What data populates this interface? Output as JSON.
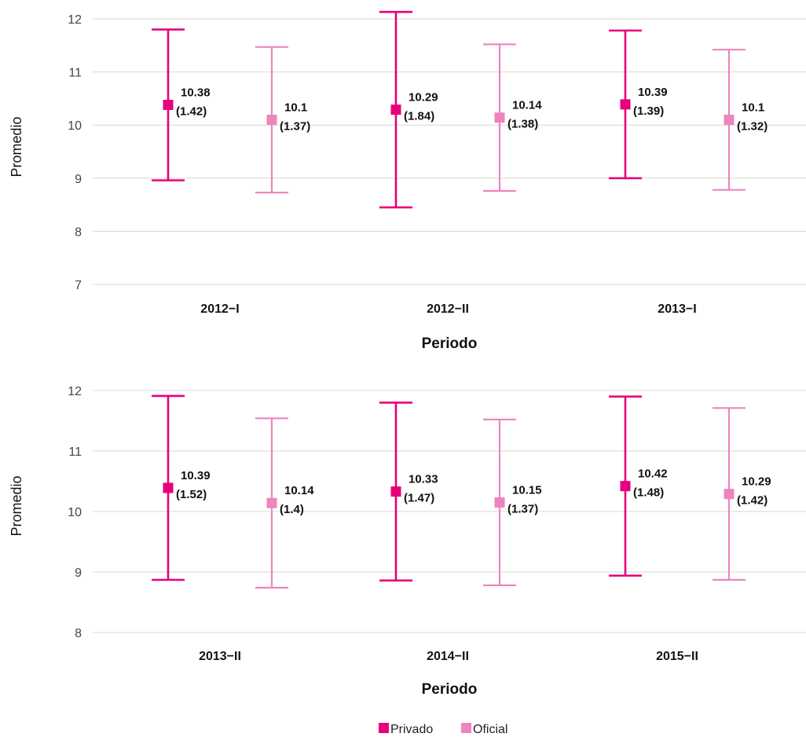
{
  "chart_data": [
    {
      "type": "errorbar",
      "xlabel": "Periodo",
      "ylabel": "Promedio",
      "ylim": [
        7,
        12.15
      ],
      "yticks": [
        "7",
        "8",
        "9",
        "10",
        "11",
        "12"
      ],
      "ytick_values": [
        7,
        8,
        9,
        10,
        11,
        12
      ],
      "categories": [
        "2012−I",
        "2012−II",
        "2013−I"
      ],
      "grid": true,
      "series": [
        {
          "name": "Privado",
          "color": "#e6007e",
          "means": [
            10.38,
            10.29,
            10.39
          ],
          "sds": [
            1.42,
            1.84,
            1.39
          ],
          "labels": [
            "10.38",
            "10.29",
            "10.39"
          ],
          "sd_labels": [
            "(1.42)",
            "(1.84)",
            "(1.39)"
          ]
        },
        {
          "name": "Oficial",
          "color": "#ec85bd",
          "means": [
            10.1,
            10.14,
            10.1
          ],
          "sds": [
            1.37,
            1.38,
            1.32
          ],
          "labels": [
            "10.1",
            "10.14",
            "10.1"
          ],
          "sd_labels": [
            "(1.37)",
            "(1.38)",
            "(1.32)"
          ]
        }
      ]
    },
    {
      "type": "errorbar",
      "xlabel": "Periodo",
      "ylabel": "Promedio",
      "ylim": [
        8,
        12.05
      ],
      "yticks": [
        "8",
        "9",
        "10",
        "11",
        "12"
      ],
      "ytick_values": [
        8,
        9,
        10,
        11,
        12
      ],
      "categories": [
        "2013−II",
        "2014−II",
        "2015−II"
      ],
      "grid": true,
      "series": [
        {
          "name": "Privado",
          "color": "#e6007e",
          "means": [
            10.39,
            10.33,
            10.42
          ],
          "sds": [
            1.52,
            1.47,
            1.48
          ],
          "labels": [
            "10.39",
            "10.33",
            "10.42"
          ],
          "sd_labels": [
            "(1.52)",
            "(1.47)",
            "(1.48)"
          ]
        },
        {
          "name": "Oficial",
          "color": "#ec85bd",
          "means": [
            10.14,
            10.15,
            10.29
          ],
          "sds": [
            1.4,
            1.37,
            1.42
          ],
          "labels": [
            "10.14",
            "10.15",
            "10.29"
          ],
          "sd_labels": [
            "(1.4)",
            "(1.37)",
            "(1.42)"
          ]
        }
      ]
    }
  ],
  "legend": {
    "placement": "bottom-center",
    "items": [
      {
        "label": "Privado",
        "color": "#e6007e"
      },
      {
        "label": "Oficial",
        "color": "#ec85bd"
      }
    ]
  },
  "colors": {
    "gridline": "#d9d9c8"
  }
}
